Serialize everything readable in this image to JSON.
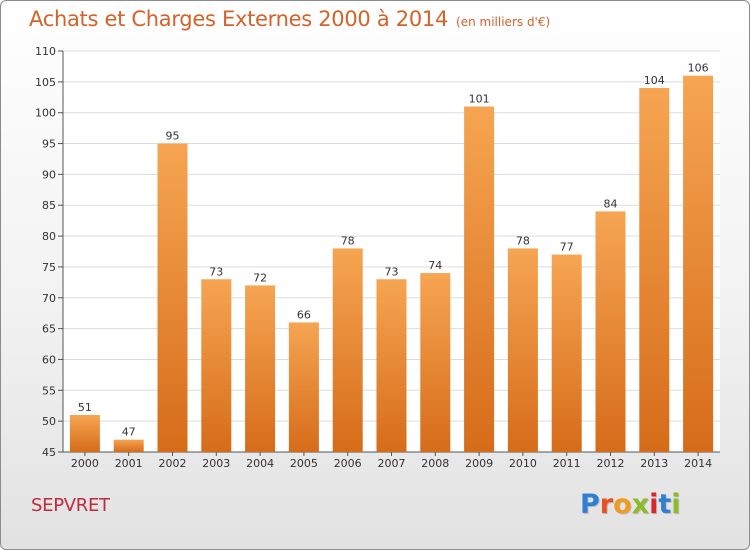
{
  "title": "Achats et Charges Externes 2000 à 2014",
  "subtitle": "(en milliers d'€)",
  "commune": "SEPVRET",
  "logo": [
    "P",
    "r",
    "o",
    "x",
    "i",
    "t",
    "i"
  ],
  "colors": {
    "title": "#d4622a",
    "bar_top": "#f6a552",
    "bar_bottom": "#d66c1a",
    "commune": "#c4283c",
    "grid": "#dddddd"
  },
  "chart_data": {
    "type": "bar",
    "categories": [
      "2000",
      "2001",
      "2002",
      "2003",
      "2004",
      "2005",
      "2006",
      "2007",
      "2008",
      "2009",
      "2010",
      "2011",
      "2012",
      "2013",
      "2014"
    ],
    "values": [
      51,
      47,
      95,
      73,
      72,
      66,
      78,
      73,
      74,
      101,
      78,
      77,
      84,
      104,
      106
    ],
    "ylim": [
      45,
      110
    ],
    "yticks": [
      45,
      50,
      55,
      60,
      65,
      70,
      75,
      80,
      85,
      90,
      95,
      100,
      105,
      110
    ],
    "grid": true,
    "data_labels": true
  }
}
